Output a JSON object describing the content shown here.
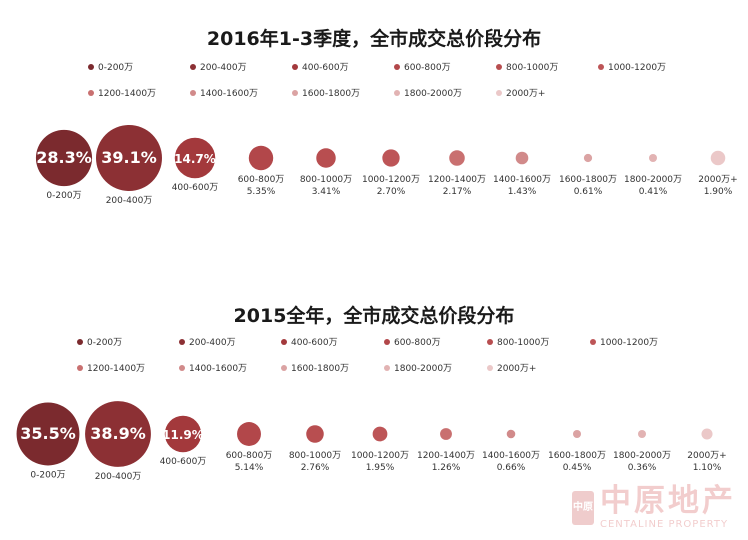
{
  "chart_data": [
    {
      "type": "bubble",
      "title": "2016年1-3季度，全市成交总价段分布",
      "legend": [
        "0-200万",
        "200-400万",
        "400-600万",
        "600-800万",
        "800-1000万",
        "1000-1200万",
        "1200-1400万",
        "1400-1600万",
        "1600-1800万",
        "1800-2000万",
        "2000万+"
      ],
      "categories": [
        "0-200万",
        "200-400万",
        "400-600万",
        "600-800万",
        "800-1000万",
        "1000-1200万",
        "1200-1400万",
        "1400-1600万",
        "1600-1800万",
        "1800-2000万",
        "2000万+"
      ],
      "values": [
        28.3,
        39.1,
        14.7,
        5.35,
        3.41,
        2.7,
        2.17,
        1.43,
        0.61,
        0.41,
        1.9
      ],
      "value_labels": [
        "28.3%",
        "39.1%",
        "14.7%",
        "5.35%",
        "3.41%",
        "2.70%",
        "2.17%",
        "1.43%",
        "0.61%",
        "0.41%",
        "1.90%"
      ],
      "unit": "%"
    },
    {
      "type": "bubble",
      "title": "2015全年，全市成交总价段分布",
      "legend": [
        "0-200万",
        "200-400万",
        "400-600万",
        "600-800万",
        "800-1000万",
        "1000-1200万",
        "1200-1400万",
        "1400-1600万",
        "1600-1800万",
        "1800-2000万",
        "2000万+"
      ],
      "categories": [
        "0-200万",
        "200-400万",
        "400-600万",
        "600-800万",
        "800-1000万",
        "1000-1200万",
        "1200-1400万",
        "1400-1600万",
        "1600-1800万",
        "1800-2000万",
        "2000万+"
      ],
      "values": [
        35.5,
        38.9,
        11.9,
        5.14,
        2.76,
        1.95,
        1.26,
        0.66,
        0.45,
        0.36,
        1.1
      ],
      "value_labels": [
        "35.5%",
        "38.9%",
        "11.9%",
        "5.14%",
        "2.76%",
        "1.95%",
        "1.26%",
        "0.66%",
        "0.45%",
        "0.36%",
        "1.10%"
      ],
      "unit": "%"
    }
  ],
  "colors": [
    "#7b2a2e",
    "#8c3034",
    "#a3393c",
    "#b2474a",
    "#b84e50",
    "#bd5557",
    "#c97070",
    "#d18a8a",
    "#dba3a3",
    "#e2b3b3",
    "#ebc8c8"
  ],
  "watermark": {
    "cn": "中原地产",
    "en": "CENTALINE PROPERTY",
    "seal": "中原"
  }
}
